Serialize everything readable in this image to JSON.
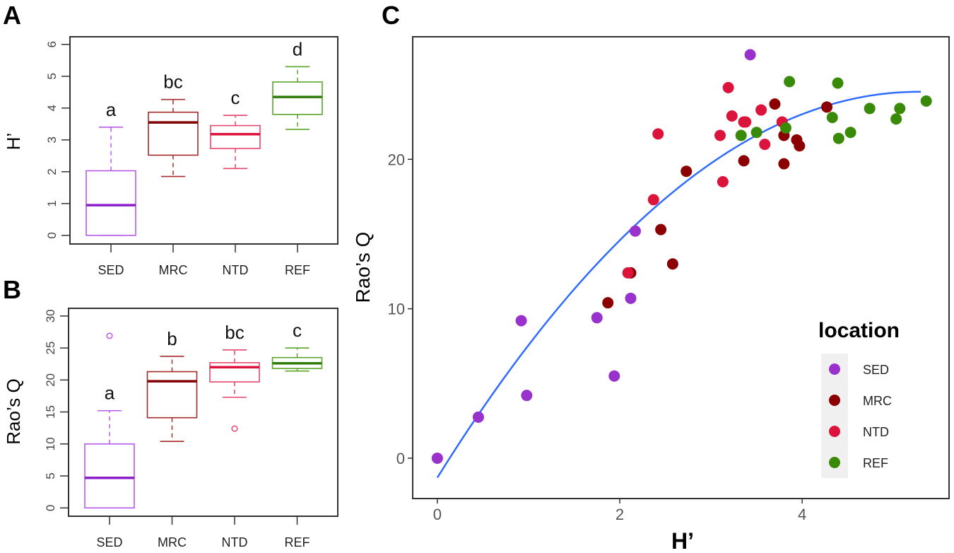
{
  "colors": {
    "SED": {
      "line": "#b75be8",
      "median": "#8a1fc9",
      "point": "#9932cc"
    },
    "MRC": {
      "line": "#a52a2a",
      "median": "#800000",
      "point": "#8b0000"
    },
    "NTD": {
      "line": "#e8456a",
      "median": "#dc143c",
      "point": "#dc143c"
    },
    "REF": {
      "line": "#5aa52a",
      "median": "#2e7d0a",
      "point": "#3a8a0a"
    },
    "fit": "#2f6bff"
  },
  "chart_data": [
    {
      "panel": "A",
      "type": "box",
      "ylabel": "H’",
      "xlabel": "",
      "ylim": [
        -0.27,
        6.24
      ],
      "yticks": [
        0,
        1,
        2,
        3,
        4,
        5,
        6
      ],
      "categories": [
        "SED",
        "MRC",
        "NTD",
        "REF"
      ],
      "boxes": [
        {
          "name": "SED",
          "min": 0,
          "q1": 0,
          "median": 0.95,
          "q3": 2.03,
          "max": 3.4,
          "outliers": [],
          "letter": "a"
        },
        {
          "name": "MRC",
          "min": 1.85,
          "q1": 2.52,
          "median": 3.55,
          "q3": 3.87,
          "max": 4.27,
          "outliers": [],
          "letter": "bc"
        },
        {
          "name": "NTD",
          "min": 2.1,
          "q1": 2.73,
          "median": 3.18,
          "q3": 3.45,
          "max": 3.77,
          "outliers": [],
          "letter": "c"
        },
        {
          "name": "REF",
          "min": 3.33,
          "q1": 3.8,
          "median": 4.35,
          "q3": 4.82,
          "max": 5.3,
          "outliers": [],
          "letter": "d"
        }
      ]
    },
    {
      "panel": "B",
      "type": "box",
      "ylabel": "Rao’s Q",
      "xlabel": "",
      "ylim": [
        -1.3,
        31.2
      ],
      "yticks": [
        0,
        5,
        10,
        15,
        20,
        25,
        30
      ],
      "categories": [
        "SED",
        "MRC",
        "NTD",
        "REF"
      ],
      "boxes": [
        {
          "name": "SED",
          "min": 0,
          "q1": 0,
          "median": 4.7,
          "q3": 10.0,
          "max": 15.2,
          "outliers": [
            26.9
          ],
          "letter": "a"
        },
        {
          "name": "MRC",
          "min": 10.4,
          "q1": 14.1,
          "median": 19.8,
          "q3": 21.3,
          "max": 23.7,
          "outliers": [],
          "letter": "b"
        },
        {
          "name": "NTD",
          "min": 17.3,
          "q1": 19.7,
          "median": 22.0,
          "q3": 22.7,
          "max": 24.7,
          "outliers": [
            12.4
          ],
          "letter": "bc"
        },
        {
          "name": "REF",
          "min": 21.4,
          "q1": 21.8,
          "median": 22.6,
          "q3": 23.5,
          "max": 25.0,
          "outliers": [],
          "letter": "c"
        }
      ]
    },
    {
      "panel": "C",
      "type": "scatter",
      "xlabel": "H’",
      "ylabel": "Rao’s Q",
      "xlim": [
        -0.27,
        5.61
      ],
      "ylim": [
        -2.7,
        28.2
      ],
      "xticks": [
        0,
        2,
        4
      ],
      "yticks": [
        0,
        10,
        20
      ],
      "legend": {
        "title": "location",
        "position": "bottom-right",
        "entries": [
          "SED",
          "MRC",
          "NTD",
          "REF"
        ]
      },
      "fit": {
        "type": "quadratic",
        "coefficients": [
          -1.3,
          9.8,
          -0.93
        ],
        "xrange": [
          0,
          5.3
        ]
      },
      "series": [
        {
          "name": "SED",
          "points": [
            [
              0,
              0
            ],
            [
              0.45,
              2.75
            ],
            [
              0.92,
              9.2
            ],
            [
              0.98,
              4.2
            ],
            [
              1.75,
              9.4
            ],
            [
              1.94,
              5.5
            ],
            [
              2.12,
              10.7
            ],
            [
              2.17,
              15.2
            ],
            [
              3.43,
              27.0
            ]
          ]
        },
        {
          "name": "MRC",
          "points": [
            [
              1.87,
              10.4
            ],
            [
              2.12,
              12.4
            ],
            [
              2.45,
              15.3
            ],
            [
              2.58,
              13.0
            ],
            [
              2.73,
              19.2
            ],
            [
              3.36,
              19.9
            ],
            [
              3.7,
              23.7
            ],
            [
              3.8,
              21.6
            ],
            [
              3.8,
              19.7
            ],
            [
              3.94,
              21.3
            ],
            [
              3.97,
              20.9
            ],
            [
              4.27,
              23.5
            ]
          ]
        },
        {
          "name": "NTD",
          "points": [
            [
              2.09,
              12.4
            ],
            [
              2.37,
              17.3
            ],
            [
              2.42,
              21.7
            ],
            [
              3.1,
              21.6
            ],
            [
              3.13,
              18.5
            ],
            [
              3.19,
              24.8
            ],
            [
              3.23,
              22.9
            ],
            [
              3.36,
              22.5
            ],
            [
              3.38,
              22.5
            ],
            [
              3.55,
              23.3
            ],
            [
              3.59,
              21.0
            ],
            [
              3.78,
              22.5
            ]
          ]
        },
        {
          "name": "REF",
          "points": [
            [
              3.33,
              21.6
            ],
            [
              3.5,
              21.8
            ],
            [
              3.86,
              25.2
            ],
            [
              3.82,
              22.1
            ],
            [
              4.39,
              25.1
            ],
            [
              4.33,
              22.8
            ],
            [
              4.4,
              21.4
            ],
            [
              4.53,
              21.8
            ],
            [
              4.74,
              23.4
            ],
            [
              5.07,
              23.4
            ],
            [
              5.03,
              22.7
            ],
            [
              5.36,
              23.9
            ]
          ]
        }
      ]
    }
  ]
}
